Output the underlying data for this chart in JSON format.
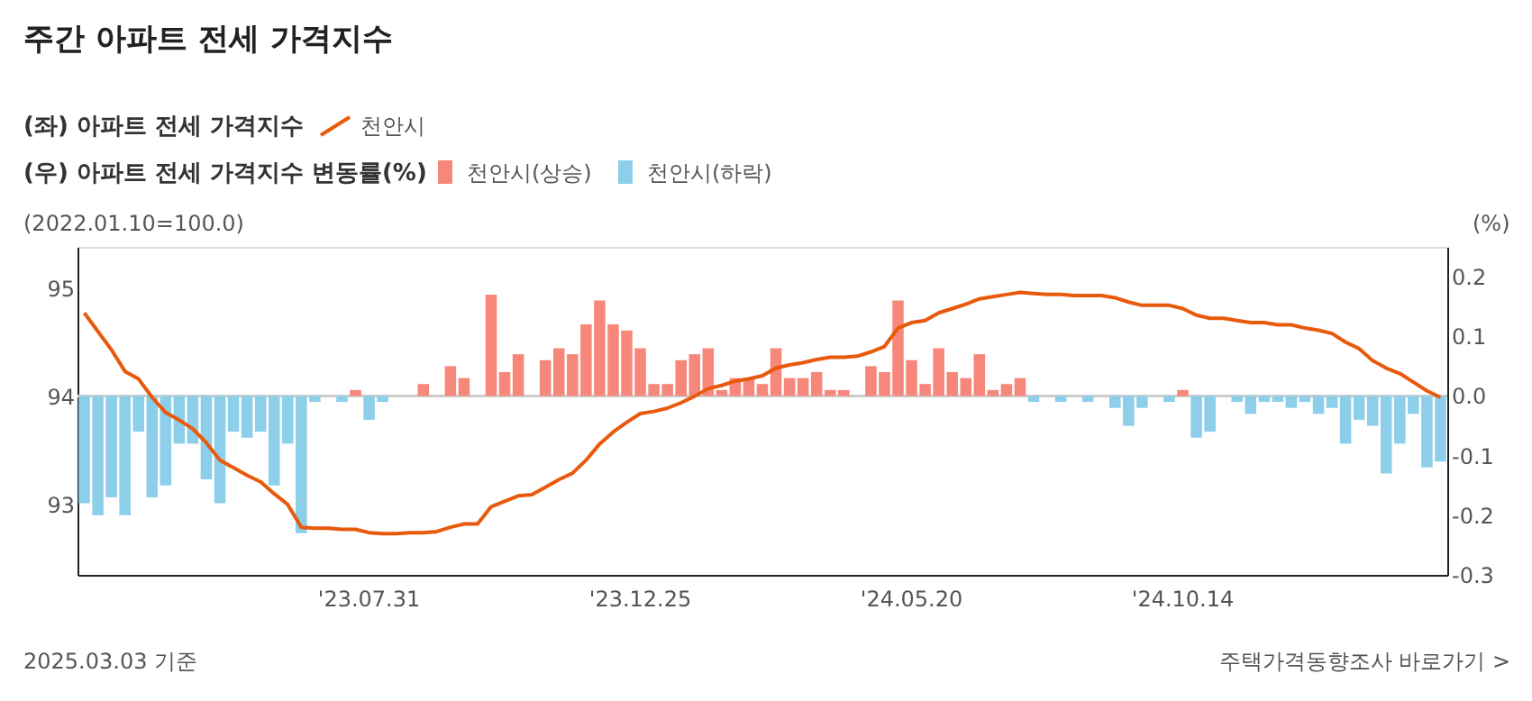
{
  "chart_data": {
    "type": "bar",
    "title": "주간 아파트 전세 가격지수",
    "annotations": [
      "(좌) 아파트 전세 가격지수",
      "(우) 아파트 전세 가격지수 변동률(%)",
      "(2022.01.10=100.0)",
      "(%)",
      "2025.03.03 기준",
      "주택가격동향조사 바로가기 >"
    ],
    "categories": [
      null,
      null,
      null,
      null,
      null,
      null,
      null,
      null,
      null,
      null,
      null,
      null,
      null,
      null,
      null,
      null,
      null,
      null,
      null,
      null,
      null,
      "'23.07.31",
      null,
      null,
      null,
      null,
      null,
      null,
      null,
      null,
      null,
      null,
      null,
      null,
      null,
      null,
      null,
      null,
      null,
      null,
      null,
      "'23.12.25",
      null,
      null,
      null,
      null,
      null,
      null,
      null,
      null,
      null,
      null,
      null,
      null,
      null,
      null,
      null,
      null,
      null,
      null,
      null,
      "'24.05.20",
      null,
      null,
      null,
      null,
      null,
      null,
      null,
      null,
      null,
      null,
      null,
      null,
      null,
      null,
      null,
      null,
      null,
      null,
      null,
      "'24.10.14",
      null,
      null,
      null,
      null,
      null,
      null,
      null,
      null,
      null,
      null,
      null,
      null,
      null,
      null,
      null,
      null,
      null,
      null,
      null
    ],
    "series": [
      {
        "name": "천안시",
        "type": "line",
        "axis": "y",
        "color": "#e8590c",
        "values": [
          94.77,
          94.6,
          94.43,
          94.23,
          94.16,
          93.99,
          93.85,
          93.78,
          93.7,
          93.57,
          93.41,
          93.34,
          93.27,
          93.21,
          93.1,
          93.0,
          92.79,
          92.78,
          92.78,
          92.77,
          92.77,
          92.74,
          92.73,
          92.73,
          92.74,
          92.74,
          92.75,
          92.79,
          92.82,
          92.82,
          92.98,
          93.03,
          93.08,
          93.09,
          93.16,
          93.23,
          93.29,
          93.41,
          93.56,
          93.67,
          93.76,
          93.84,
          93.86,
          93.89,
          93.94,
          94.0,
          94.07,
          94.1,
          94.14,
          94.16,
          94.19,
          94.26,
          94.29,
          94.31,
          94.34,
          94.36,
          94.36,
          94.37,
          94.41,
          94.46,
          94.63,
          94.68,
          94.7,
          94.77,
          94.81,
          94.85,
          94.9,
          94.92,
          94.94,
          94.96,
          94.95,
          94.94,
          94.94,
          94.93,
          94.93,
          94.93,
          94.91,
          94.87,
          94.84,
          94.84,
          94.84,
          94.81,
          94.75,
          94.72,
          94.72,
          94.7,
          94.68,
          94.68,
          94.66,
          94.66,
          94.63,
          94.61,
          94.58,
          94.5,
          94.44,
          94.33,
          94.26,
          94.21,
          94.13,
          94.05,
          93.99
        ]
      },
      {
        "name": "천안시(상승)",
        "axis": "y2",
        "color": "#f8877b",
        "values": [
          null,
          null,
          null,
          null,
          null,
          null,
          null,
          null,
          null,
          null,
          null,
          null,
          null,
          null,
          null,
          null,
          null,
          null,
          0,
          null,
          0.01,
          null,
          null,
          0,
          0,
          0.02,
          0,
          0.05,
          0.03,
          0,
          0.17,
          0.04,
          0.07,
          0,
          0.06,
          0.08,
          0.07,
          0.12,
          0.16,
          0.12,
          0.11,
          0.08,
          0.02,
          0.02,
          0.06,
          0.07,
          0.08,
          0.01,
          0.03,
          0.03,
          0.02,
          0.08,
          0.03,
          0.03,
          0.04,
          0.01,
          0.01,
          0,
          0.05,
          0.04,
          0.16,
          0.06,
          0.02,
          0.08,
          0.04,
          0.03,
          0.07,
          0.01,
          0.02,
          0.03,
          null,
          0,
          null,
          0,
          null,
          0,
          null,
          null,
          null,
          0,
          null,
          0.01,
          null,
          null,
          0,
          null,
          null,
          null,
          null,
          null,
          null,
          null,
          null,
          null,
          null,
          null,
          null,
          null,
          null,
          null,
          null
        ]
      },
      {
        "name": "천안시(하락)",
        "axis": "y2",
        "color": "#8dcfea",
        "values": [
          -0.18,
          -0.2,
          -0.17,
          -0.2,
          -0.06,
          -0.17,
          -0.15,
          -0.08,
          -0.08,
          -0.14,
          -0.18,
          -0.06,
          -0.07,
          -0.06,
          -0.15,
          -0.08,
          -0.23,
          -0.01,
          null,
          -0.01,
          null,
          -0.04,
          -0.01,
          null,
          null,
          null,
          null,
          null,
          null,
          null,
          null,
          null,
          null,
          null,
          null,
          null,
          null,
          null,
          null,
          null,
          null,
          null,
          null,
          null,
          null,
          null,
          null,
          null,
          null,
          null,
          null,
          null,
          null,
          null,
          null,
          null,
          null,
          null,
          null,
          null,
          null,
          null,
          null,
          null,
          null,
          null,
          null,
          null,
          null,
          null,
          -0.01,
          null,
          -0.01,
          null,
          -0.01,
          null,
          -0.02,
          -0.05,
          -0.02,
          null,
          -0.01,
          null,
          -0.07,
          -0.06,
          null,
          -0.01,
          -0.03,
          -0.01,
          -0.01,
          -0.02,
          -0.01,
          -0.03,
          -0.02,
          -0.08,
          -0.04,
          -0.05,
          -0.13,
          -0.08,
          -0.03,
          -0.12,
          -0.11
        ]
      }
    ],
    "ylim": [
      92.35,
      95.38
    ],
    "yticks": [
      93,
      94,
      95
    ],
    "y2lim": [
      -0.3,
      0.25
    ],
    "y2ticks": [
      -0.3,
      -0.2,
      -0.1,
      {
        "value": 0,
        "label": "0.0"
      },
      0.1,
      0.2
    ],
    "ref_lines": [
      {
        "axis": "y2",
        "value": 0,
        "color": "#cccccc"
      }
    ],
    "grid": false,
    "legend": "top left"
  }
}
